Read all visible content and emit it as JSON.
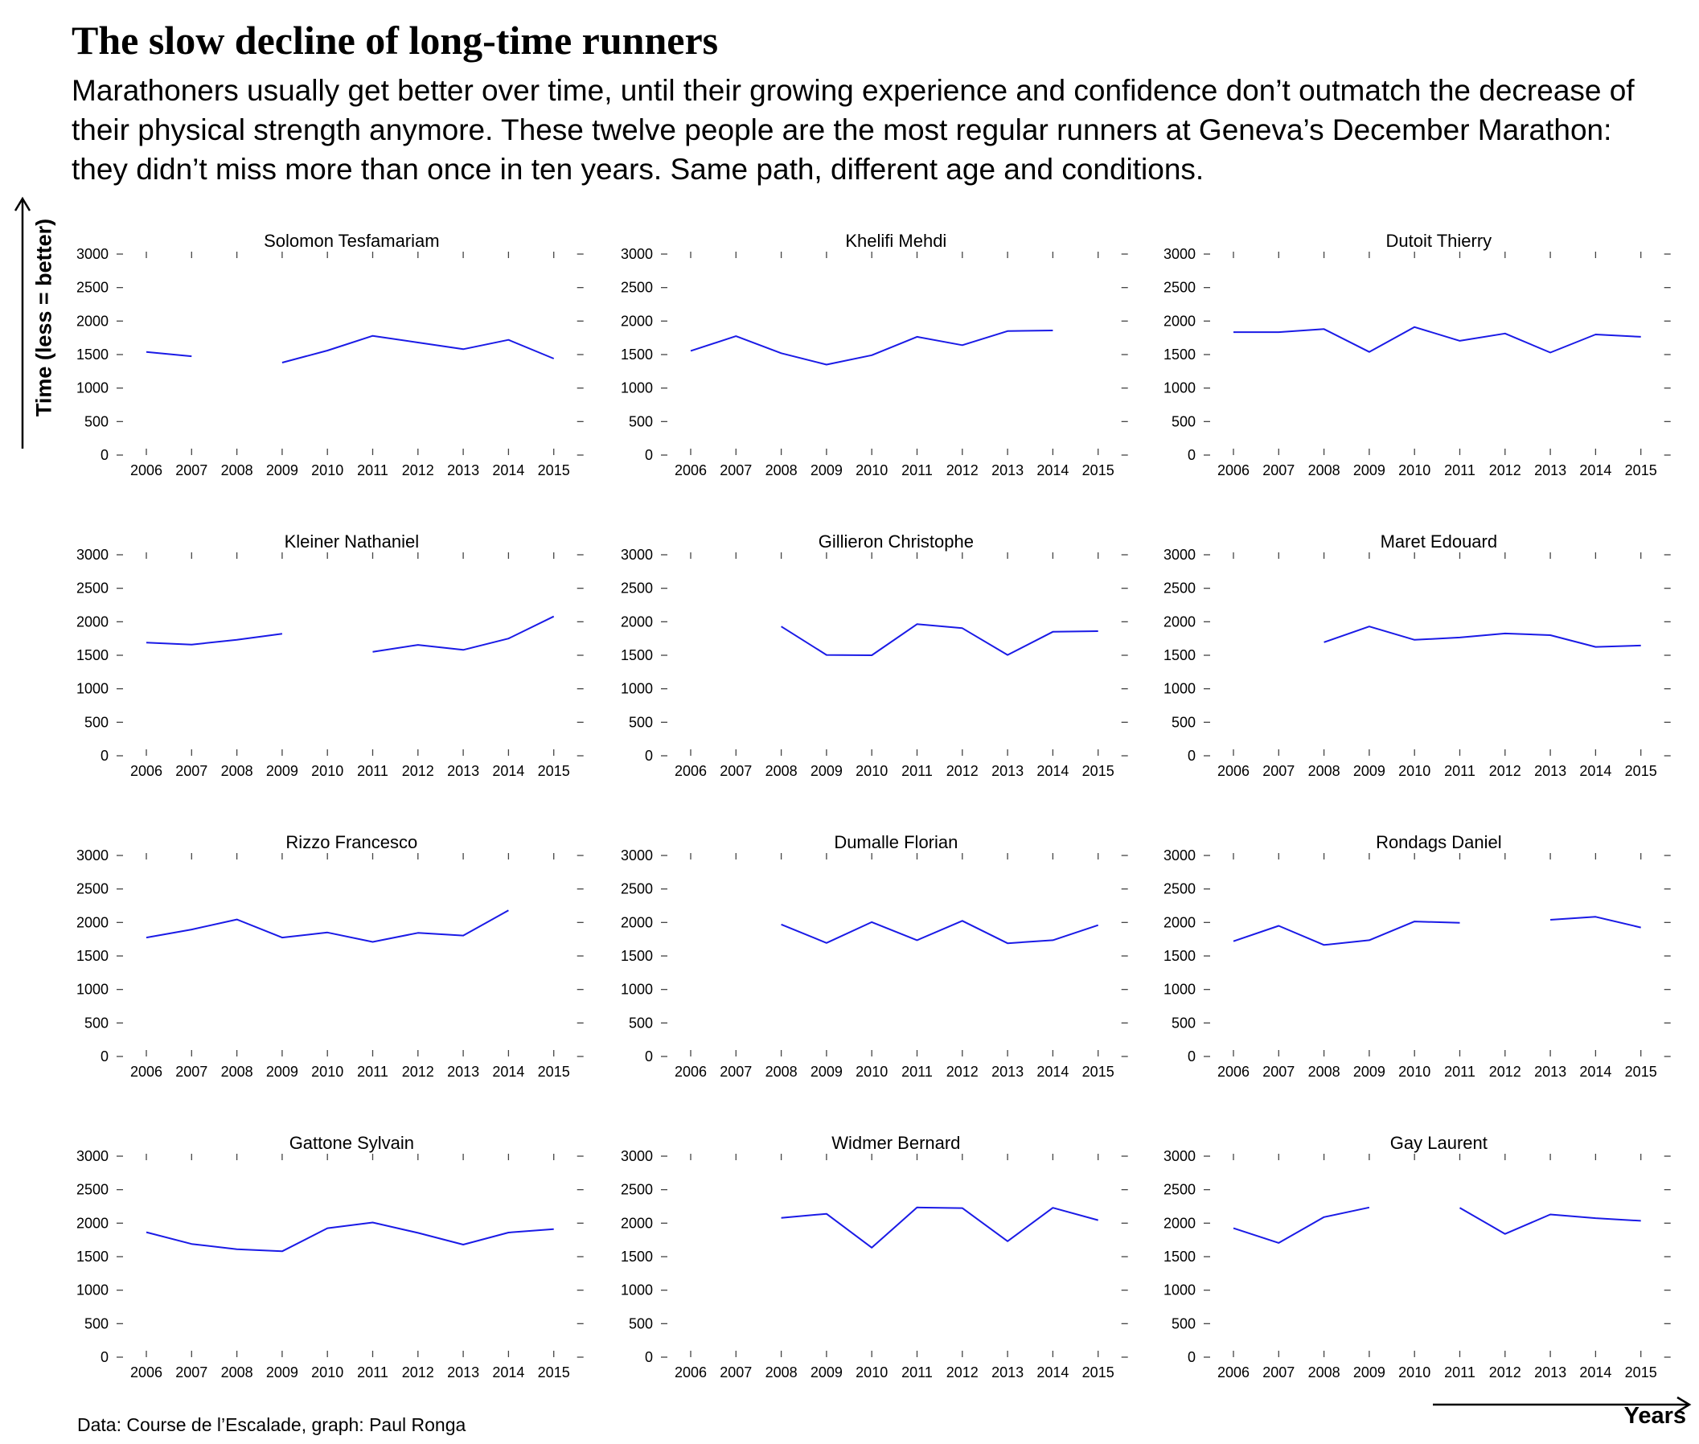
{
  "title": "The slow decline of long-time runners",
  "subtitle": "Marathoners usually get better over time, until their growing experience and confidence don’t outmatch the de­crease of their physical strength anymore. These twelve people are the most regular runners at Geneva’s December Marathon: they didn’t miss more than once in ten years. Same path, different age and conditions.",
  "ylabel": "Time (less = better)",
  "xlabel": "Years",
  "source": "Data: Course de l’Escalade, graph: Paul Ronga",
  "line_color": "#1a1ae6",
  "chart_data": {
    "type": "line",
    "layout": "small-multiples 4 rows x 3 columns",
    "x": [
      "2006",
      "2007",
      "2008",
      "2009",
      "2010",
      "2011",
      "2012",
      "2013",
      "2014",
      "2015"
    ],
    "ylim": [
      0,
      3000
    ],
    "yticks": [
      "0",
      "500",
      "1000",
      "1500",
      "2000",
      "2500",
      "3000"
    ],
    "grid": false,
    "panels": [
      {
        "title": "Solomon Tesfamariam",
        "values": [
          1540,
          1475,
          null,
          1380,
          1560,
          1780,
          1680,
          1580,
          1720,
          1440
        ]
      },
      {
        "title": "Khelifi Mehdi",
        "values": [
          1555,
          1775,
          1520,
          1350,
          1490,
          1765,
          1640,
          1850,
          1860,
          null
        ]
      },
      {
        "title": "Dutoit Thierry",
        "values": [
          1835,
          1835,
          1880,
          1540,
          1910,
          1705,
          1815,
          1530,
          1800,
          1765
        ]
      },
      {
        "title": "Kleiner Nathaniel",
        "values": [
          1690,
          1660,
          1730,
          1820,
          null,
          1550,
          1655,
          1580,
          1750,
          2080
        ]
      },
      {
        "title": "Gillieron Christophe",
        "values": [
          null,
          null,
          1930,
          1505,
          1500,
          1965,
          1905,
          1505,
          1850,
          1860
        ]
      },
      {
        "title": "Maret Edouard",
        "values": [
          null,
          null,
          1695,
          1930,
          1730,
          1765,
          1825,
          1800,
          1625,
          1645
        ]
      },
      {
        "title": "Rizzo Francesco",
        "values": [
          1775,
          1895,
          2045,
          1775,
          1850,
          1710,
          1845,
          1805,
          2180,
          null
        ]
      },
      {
        "title": "Dumalle Florian",
        "values": [
          null,
          null,
          1970,
          1695,
          2005,
          1735,
          2025,
          1690,
          1735,
          1960
        ]
      },
      {
        "title": "Rondags Daniel",
        "values": [
          1720,
          1950,
          1665,
          1735,
          2015,
          1995,
          null,
          2040,
          2085,
          1925
        ]
      },
      {
        "title": "Gattone Sylvain",
        "values": [
          1865,
          1690,
          1610,
          1580,
          1925,
          2010,
          1855,
          1680,
          1860,
          1910
        ]
      },
      {
        "title": "Widmer Bernard",
        "values": [
          null,
          null,
          2080,
          2140,
          1635,
          2235,
          2225,
          1730,
          2230,
          2045
        ]
      },
      {
        "title": "Gay Laurent",
        "values": [
          1925,
          1705,
          2090,
          2235,
          null,
          2230,
          1840,
          2130,
          2075,
          2035
        ]
      }
    ]
  }
}
